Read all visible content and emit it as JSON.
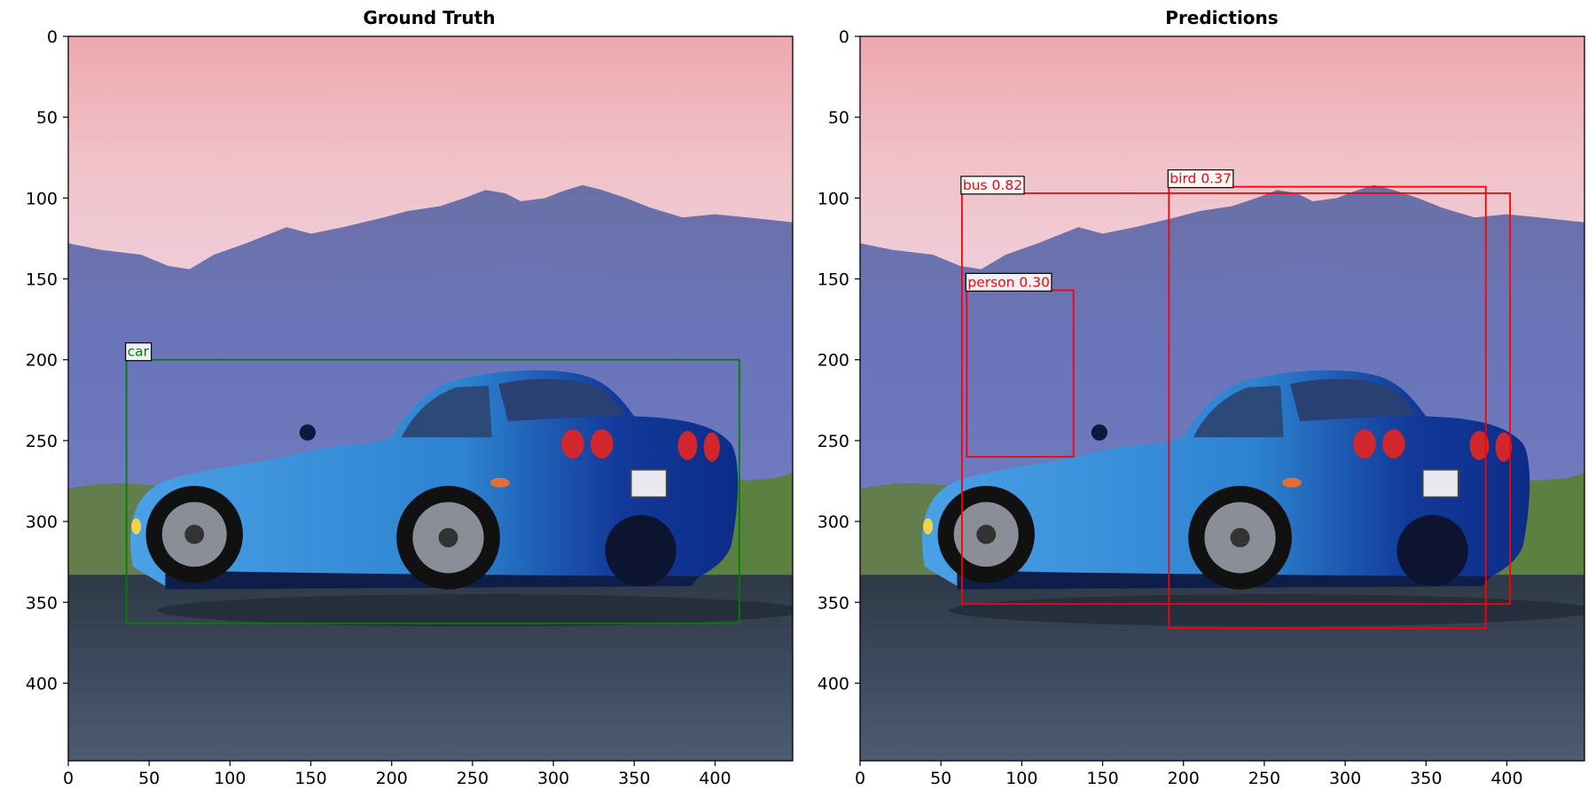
{
  "figure": {
    "panels": [
      {
        "title": "Ground Truth",
        "xticks": [
          "0",
          "50",
          "100",
          "150",
          "200",
          "250",
          "300",
          "350",
          "400"
        ],
        "yticks": [
          "0",
          "50",
          "100",
          "150",
          "200",
          "250",
          "300",
          "350",
          "400"
        ],
        "box_color": "#008000",
        "boxes": [
          {
            "label": "car",
            "x0": 36,
            "y0": 200,
            "x1": 415,
            "y1": 363
          }
        ]
      },
      {
        "title": "Predictions",
        "xticks": [
          "0",
          "50",
          "100",
          "150",
          "200",
          "250",
          "300",
          "350",
          "400"
        ],
        "yticks": [
          "0",
          "50",
          "100",
          "150",
          "200",
          "250",
          "300",
          "350",
          "400"
        ],
        "box_color": "#ff0000",
        "boxes": [
          {
            "label": "bus 0.82",
            "x0": 63,
            "y0": 97,
            "x1": 402,
            "y1": 351
          },
          {
            "label": "bird 0.37",
            "x0": 191,
            "y0": 93,
            "x1": 387,
            "y1": 366
          },
          {
            "label": "person 0.30",
            "x0": 66,
            "y0": 157,
            "x1": 132,
            "y1": 260
          }
        ]
      }
    ],
    "image_extent": {
      "xmax": 448,
      "ymax": 448
    },
    "colors": {
      "sky_top": "#eeaab0",
      "sky_bottom": "#f2cfd8",
      "mountain": "#6f74b4",
      "grass": "#6a8a4e",
      "road": "#3c4656",
      "car": "#2a78c8"
    }
  }
}
